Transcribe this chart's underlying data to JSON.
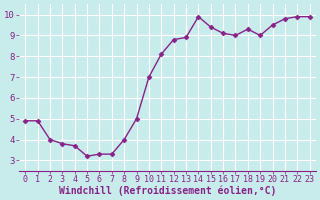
{
  "x": [
    0,
    1,
    2,
    3,
    4,
    5,
    6,
    7,
    8,
    9,
    10,
    11,
    12,
    13,
    14,
    15,
    16,
    17,
    18,
    19,
    20,
    21,
    22,
    23
  ],
  "y": [
    4.9,
    4.9,
    4.0,
    3.8,
    3.7,
    3.2,
    3.3,
    3.3,
    4.0,
    5.0,
    7.0,
    8.1,
    8.8,
    8.9,
    9.9,
    9.4,
    9.1,
    9.0,
    9.3,
    9.0,
    9.5,
    9.8,
    9.9,
    9.9
  ],
  "xlabel": "Windchill (Refroidissement éolien,°C)",
  "ylim": [
    2.5,
    10.5
  ],
  "xlim": [
    -0.5,
    23.5
  ],
  "yticks": [
    3,
    4,
    5,
    6,
    7,
    8,
    9,
    10
  ],
  "line_color": "#882288",
  "marker": "D",
  "marker_size": 2.5,
  "bg_color": "#c8ecec",
  "grid_color": "#ffffff",
  "text_color": "#882288",
  "tick_fontsize": 6.0,
  "xlabel_fontsize": 7.0,
  "linewidth": 1.0
}
